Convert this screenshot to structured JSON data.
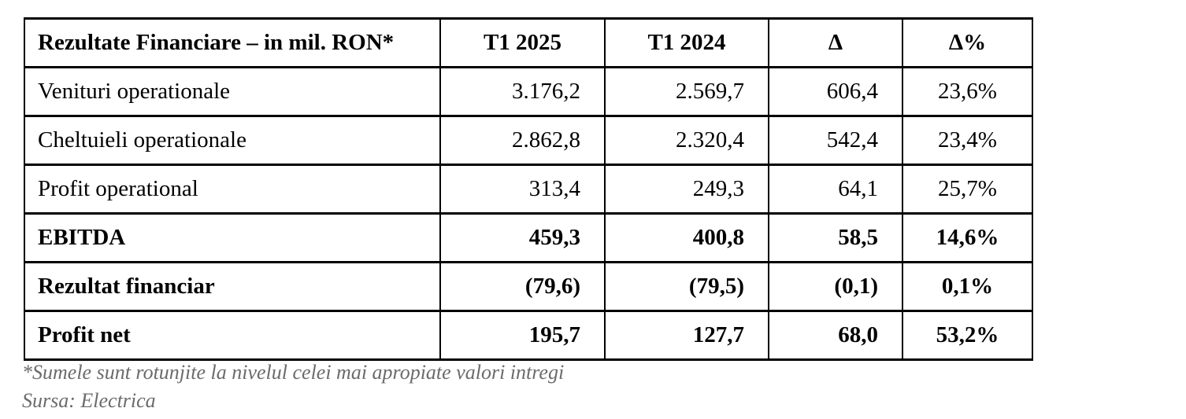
{
  "table": {
    "title_cell": "Rezultate Financiare – in mil. RON*",
    "column_headers": [
      "T1 2025",
      "T1 2024",
      "Δ",
      "Δ%"
    ],
    "rows": [
      {
        "label": "Venituri operationale",
        "values": [
          "3.176,2",
          "2.569,7",
          "606,4",
          "23,6%"
        ],
        "emphasis": false
      },
      {
        "label": "Cheltuieli operationale",
        "values": [
          "2.862,8",
          "2.320,4",
          "542,4",
          "23,4%"
        ],
        "emphasis": false
      },
      {
        "label": "Profit operational",
        "values": [
          "313,4",
          "249,3",
          "64,1",
          "25,7%"
        ],
        "emphasis": false
      },
      {
        "label": "EBITDA",
        "values": [
          "459,3",
          "400,8",
          "58,5",
          "14,6%"
        ],
        "emphasis": true
      },
      {
        "label": "Rezultat financiar",
        "values": [
          "(79,6)",
          "(79,5)",
          "(0,1)",
          "0,1%"
        ],
        "emphasis": true
      },
      {
        "label": "Profit net",
        "values": [
          "195,7",
          "127,7",
          "68,0",
          "53,2%"
        ],
        "emphasis": true
      }
    ]
  },
  "footnotes": {
    "rounding": "*Sumele sunt rotunjite la nivelul celei mai apropiate valori intregi",
    "source": "Sursa: Electrica"
  },
  "colors": {
    "text": "#000000",
    "border": "#000000",
    "footnote_text": "#6b6b6b",
    "background": "#ffffff"
  }
}
